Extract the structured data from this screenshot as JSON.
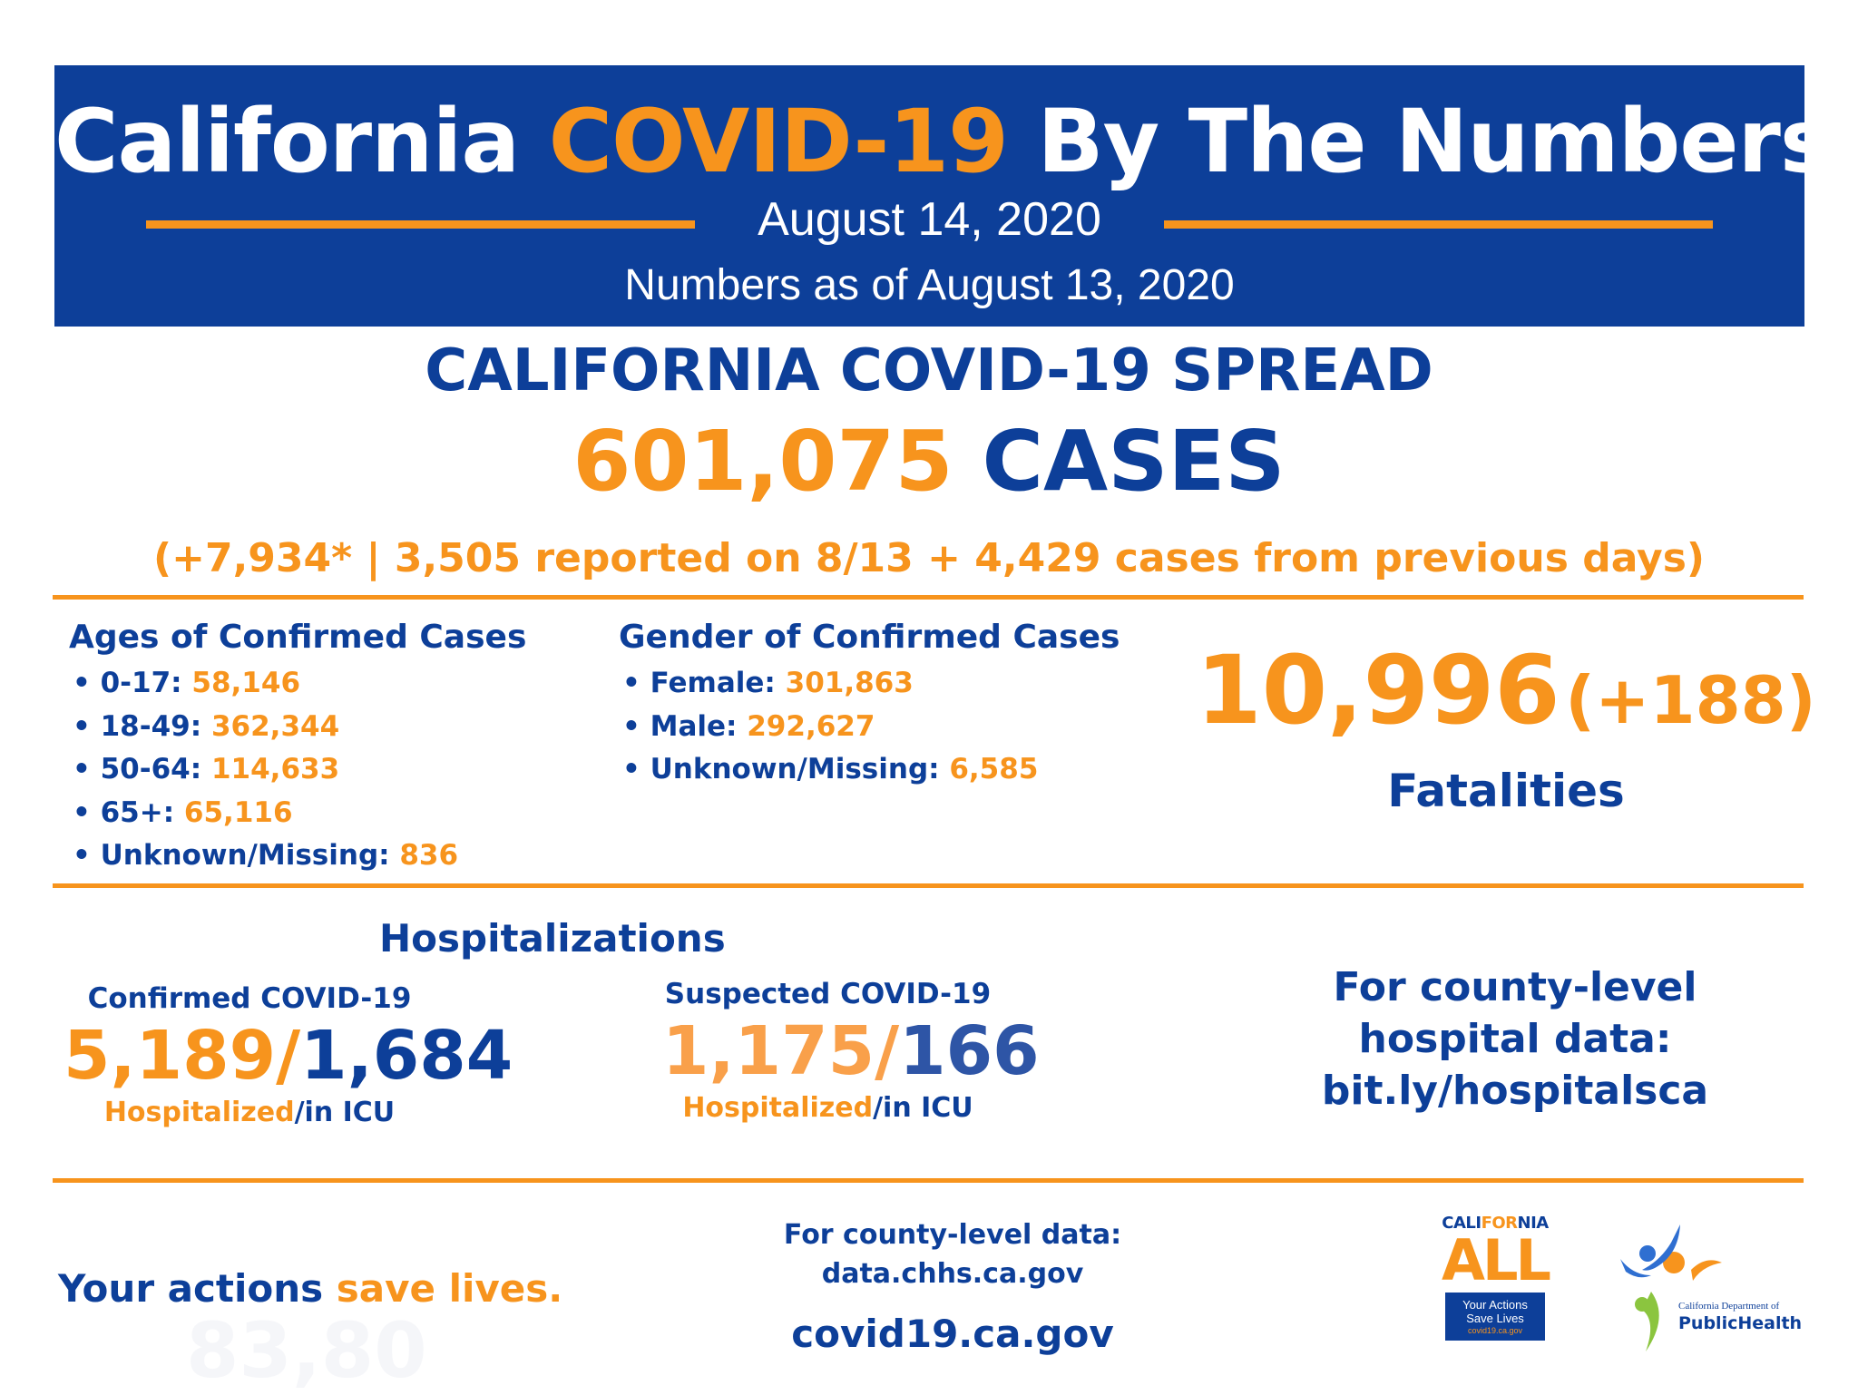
{
  "header": {
    "title_part1": "California",
    "title_highlight": "COVID-19",
    "title_part2": "By The Numbers",
    "date": "August 14, 2020",
    "as_of": "Numbers as of August 13, 2020"
  },
  "spread": {
    "heading": "CALIFORNIA COVID-19 SPREAD",
    "cases_number": "601,075",
    "cases_word": "CASES",
    "new_cases": "(+7,934* | 3,505 reported on 8/13 + 4,429 cases from previous days)"
  },
  "ages": {
    "heading": "Ages of Confirmed Cases",
    "items": [
      {
        "label": "0-17:",
        "value": "58,146"
      },
      {
        "label": "18-49:",
        "value": "362,344"
      },
      {
        "label": "50-64:",
        "value": "114,633"
      },
      {
        "label": "65+:",
        "value": "65,116"
      },
      {
        "label": "Unknown/Missing:",
        "value": "836"
      }
    ]
  },
  "gender": {
    "heading": "Gender of Confirmed Cases",
    "items": [
      {
        "label": "Female:",
        "value": "301,863"
      },
      {
        "label": "Male:",
        "value": "292,627"
      },
      {
        "label": "Unknown/Missing:",
        "value": "6,585"
      }
    ]
  },
  "fatalities": {
    "number": "10,996",
    "change": "(+188)",
    "label": "Fatalities"
  },
  "hospitalizations": {
    "heading": "Hospitalizations",
    "confirmed": {
      "label": "Confirmed COVID-19",
      "hospitalized": "5,189",
      "icu": "1,684",
      "caption_hospitalized": "Hospitalized",
      "caption_icu": "/in ICU"
    },
    "suspected": {
      "label": "Suspected COVID-19",
      "hospitalized": "1,175",
      "icu": "166",
      "caption_hospitalized": "Hospitalized",
      "caption_icu": "/in ICU"
    },
    "county_link": {
      "line1": "For county-level",
      "line2": "hospital data:",
      "url": "bit.ly/hospitalsca"
    }
  },
  "footer": {
    "tagline_part1": "Your actions ",
    "tagline_part2": "save lives.",
    "county_data_label": "For county-level data:",
    "county_data_url": "data.chhs.ca.gov",
    "site": "covid19.ca.gov",
    "watermark": "83,80"
  },
  "logos": {
    "ca_all": {
      "top_part1": "CALI",
      "top_part2": "FOR",
      "top_part3": "NIA",
      "big": "ALL",
      "box_line1": "Your Actions",
      "box_line2": "Save Lives",
      "box_line3": "covid19.ca.gov"
    },
    "cdph": {
      "line1": "California Department of",
      "line2": "PublicHealth"
    }
  },
  "colors": {
    "brand_blue": "#0d3f99",
    "brand_orange": "#f7941d",
    "cdph_green": "#8bc53f"
  }
}
